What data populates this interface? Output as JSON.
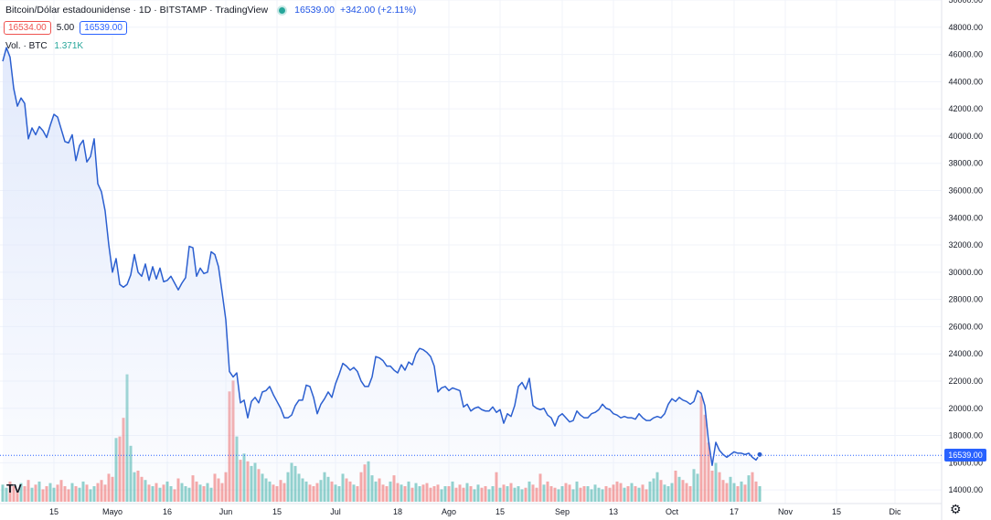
{
  "header": {
    "title": "Bitcoin/Dólar estadounidense · 1D · BITSTAMP · TradingView",
    "last": "16539.00",
    "change": "+342.00 (+2.11%)"
  },
  "quote": {
    "sell": "16534.00",
    "spread": "5.00",
    "buy": "16539.00"
  },
  "volume": {
    "label": "Vol. · BTC",
    "value": "1.371K"
  },
  "logo": "TV",
  "current_price_label": "16539.00",
  "colors": {
    "line": "#2b5fd0",
    "up": "#26a69a",
    "down": "#ef5350",
    "fill": "#dde6fb"
  },
  "chart_data": {
    "type": "area",
    "series": [
      {
        "values": [
          45500,
          46500,
          45800,
          43500,
          42200,
          42800,
          42400,
          39800,
          40600,
          40100,
          40700,
          40400,
          39900,
          40800,
          41600,
          41400,
          40500,
          39600,
          39500,
          40100,
          38200,
          39300,
          39700,
          38100,
          38500,
          39800,
          36500,
          35900,
          34500,
          32000,
          30000,
          31000,
          29100,
          28900,
          29100,
          29800,
          31300,
          30000,
          29700,
          30600,
          29400,
          30400,
          29500,
          30300,
          29300,
          29400,
          29700,
          29200,
          28700,
          29200,
          29600,
          31900,
          31800,
          29700,
          30300,
          29900,
          30000,
          31500,
          31300,
          30400,
          28500,
          26500,
          22700,
          22300,
          22600,
          20400,
          20600,
          19300,
          20500,
          20800,
          20400,
          21200,
          21300,
          21600,
          21000,
          20500,
          20000,
          19300,
          19300,
          19500,
          20200,
          20600,
          20600,
          21700,
          21600,
          20800,
          19600,
          20300,
          20700,
          21200,
          20800,
          21800,
          22500,
          23300,
          23100,
          22800,
          23000,
          22700,
          22000,
          21600,
          21600,
          22300,
          23800,
          23700,
          23500,
          23100,
          23100,
          22800,
          22600,
          23200,
          22800,
          23400,
          23200,
          24000,
          24400,
          24300,
          24100,
          23800,
          23100,
          21200,
          21500,
          21600,
          21300,
          21500,
          21400,
          21300,
          20100,
          20300,
          19800,
          20000,
          20100,
          19900,
          19800,
          19800,
          20100,
          19700,
          19900,
          18900,
          19600,
          19400,
          20200,
          21600,
          21900,
          21400,
          22200,
          20200,
          20000,
          19900,
          20000,
          19500,
          19300,
          18700,
          19400,
          19600,
          19300,
          19000,
          19100,
          19800,
          19500,
          19300,
          19300,
          19600,
          19700,
          19900,
          20300,
          20000,
          19900,
          19600,
          19500,
          19300,
          19400,
          19300,
          19300,
          19200,
          19600,
          19300,
          19100,
          19100,
          19300,
          19400,
          19300,
          19600,
          20300,
          20700,
          20500,
          20800,
          20600,
          20500,
          20300,
          20500,
          21300,
          21100,
          20200,
          17600,
          15800,
          17500,
          16900,
          16600,
          16400,
          16600,
          16800,
          16700,
          16700,
          16600,
          16700,
          16400,
          16200,
          16600
        ],
        "volumes": [
          1.1,
          0.9,
          1.3,
          1.0,
          0.8,
          1.2,
          1.0,
          1.4,
          0.9,
          1.1,
          1.3,
          0.8,
          1.0,
          1.2,
          0.9,
          1.1,
          1.4,
          1.0,
          0.8,
          1.2,
          1.0,
          0.9,
          1.3,
          1.1,
          0.8,
          1.0,
          1.2,
          1.4,
          1.1,
          1.8,
          1.6,
          4.1,
          4.2,
          5.4,
          8.2,
          3.6,
          1.9,
          2.0,
          1.6,
          1.4,
          1.1,
          1.0,
          1.2,
          0.9,
          1.1,
          1.3,
          1.0,
          0.8,
          1.5,
          1.2,
          1.0,
          0.9,
          1.7,
          1.3,
          1.1,
          1.0,
          1.2,
          0.9,
          1.8,
          1.5,
          1.2,
          1.9,
          7.1,
          7.8,
          4.2,
          2.7,
          3.1,
          2.6,
          2.3,
          2.5,
          2.1,
          1.8,
          1.5,
          1.3,
          1.1,
          1.0,
          1.4,
          1.2,
          1.9,
          2.5,
          2.3,
          1.8,
          1.5,
          1.3,
          1.1,
          1.0,
          1.2,
          1.4,
          1.9,
          1.6,
          1.3,
          1.1,
          1.0,
          1.8,
          1.5,
          1.3,
          1.1,
          1.0,
          1.9,
          2.4,
          2.6,
          1.7,
          1.3,
          1.5,
          1.1,
          1.0,
          1.3,
          1.7,
          1.2,
          1.1,
          1.0,
          1.3,
          0.9,
          1.2,
          1.0,
          1.1,
          1.2,
          0.9,
          1.0,
          1.1,
          0.8,
          1.0,
          1.0,
          1.3,
          0.9,
          1.1,
          0.9,
          1.2,
          1.0,
          0.8,
          1.1,
          0.9,
          1.0,
          0.8,
          1.0,
          1.9,
          0.9,
          1.1,
          1.0,
          1.2,
          0.9,
          1.0,
          0.8,
          0.9,
          1.3,
          1.1,
          0.9,
          1.8,
          1.1,
          1.3,
          1.0,
          0.9,
          0.8,
          1.0,
          1.2,
          1.1,
          0.8,
          1.3,
          0.9,
          1.0,
          1.0,
          0.8,
          1.1,
          0.9,
          0.8,
          1.0,
          0.9,
          1.1,
          1.3,
          1.2,
          0.9,
          1.0,
          1.2,
          1.0,
          0.9,
          1.1,
          0.8,
          1.3,
          1.5,
          1.9,
          1.4,
          1.1,
          1.0,
          1.2,
          2.0,
          1.6,
          1.4,
          1.2,
          1.0,
          2.1,
          1.8,
          6.8,
          5.6,
          3.8,
          2.0,
          2.5,
          1.9,
          1.4,
          1.2,
          1.6,
          1.2,
          1.0,
          1.3,
          1.1,
          1.7,
          1.9,
          1.3,
          1.0
        ]
      }
    ],
    "x_ticks": [
      {
        "i": 14,
        "label": "15"
      },
      {
        "i": 30,
        "label": "Mayo"
      },
      {
        "i": 45,
        "label": "16"
      },
      {
        "i": 61,
        "label": "Jun"
      },
      {
        "i": 75,
        "label": "15"
      },
      {
        "i": 91,
        "label": "Jul"
      },
      {
        "i": 108,
        "label": "18"
      },
      {
        "i": 122,
        "label": "Ago"
      },
      {
        "i": 136,
        "label": "15"
      },
      {
        "i": 153,
        "label": "Sep"
      },
      {
        "i": 167,
        "label": "13"
      },
      {
        "i": 183,
        "label": "Oct"
      },
      {
        "i": 200,
        "label": "17"
      },
      {
        "i": 214,
        "label": "Nov"
      },
      {
        "i": 228,
        "label": "15"
      },
      {
        "i": 244,
        "label": "Dic"
      }
    ],
    "y_ticks": [
      14000,
      16000,
      18000,
      20000,
      22000,
      24000,
      26000,
      28000,
      30000,
      32000,
      34000,
      36000,
      38000,
      40000,
      42000,
      44000,
      46000,
      48000,
      50000
    ],
    "ylim": [
      13000,
      50000
    ],
    "current": 16539,
    "grid": true
  }
}
